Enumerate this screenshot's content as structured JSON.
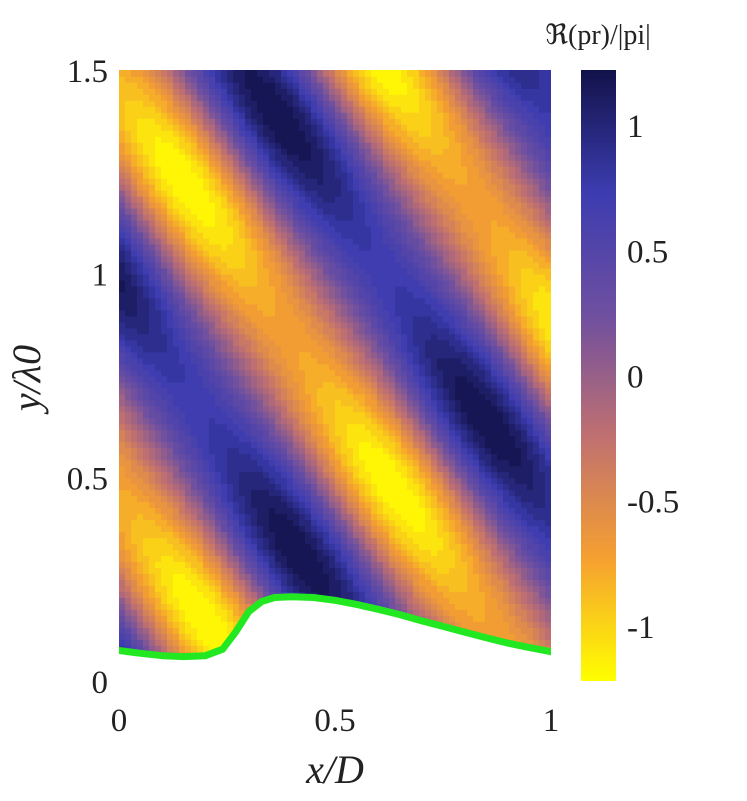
{
  "chart_data": {
    "type": "heatmap",
    "title": "",
    "xlabel": "x/D",
    "ylabel": "y/λ0",
    "xlim": [
      0,
      1
    ],
    "ylim": [
      0,
      1.5
    ],
    "x_ticks": [
      {
        "value": 0,
        "label": "0"
      },
      {
        "value": 0.5,
        "label": "0.5"
      },
      {
        "value": 1,
        "label": "1"
      }
    ],
    "y_ticks": [
      {
        "value": 0,
        "label": "0"
      },
      {
        "value": 0.5,
        "label": "0.5"
      },
      {
        "value": 1,
        "label": "1"
      },
      {
        "value": 1.5,
        "label": "1.5"
      }
    ],
    "colorbar": {
      "title": "ℜ(pr)/|pi|",
      "range": [
        -1.22,
        1.22
      ],
      "ticks": [
        {
          "value": 1,
          "label": "1"
        },
        {
          "value": 0.5,
          "label": "0.5"
        },
        {
          "value": 0,
          "label": "0"
        },
        {
          "value": -0.5,
          "label": "-0.5"
        },
        {
          "value": -1,
          "label": "-1"
        }
      ],
      "colors": [
        "#ffff00",
        "#f5a030",
        "#c07070",
        "#6e4fa0",
        "#3c3cb0",
        "#12124a"
      ]
    },
    "field": {
      "description": "contour of standing-wave field, bands oriented diagonally",
      "min_value": -1.22,
      "max_value": 1.22
    },
    "boundary_curve": {
      "color": "#22e822",
      "points": [
        [
          0.0,
          0.075
        ],
        [
          0.05,
          0.068
        ],
        [
          0.1,
          0.062
        ],
        [
          0.15,
          0.06
        ],
        [
          0.2,
          0.062
        ],
        [
          0.24,
          0.078
        ],
        [
          0.27,
          0.12
        ],
        [
          0.3,
          0.17
        ],
        [
          0.33,
          0.195
        ],
        [
          0.36,
          0.205
        ],
        [
          0.4,
          0.207
        ],
        [
          0.45,
          0.205
        ],
        [
          0.5,
          0.198
        ],
        [
          0.55,
          0.188
        ],
        [
          0.6,
          0.176
        ],
        [
          0.65,
          0.163
        ],
        [
          0.7,
          0.148
        ],
        [
          0.75,
          0.134
        ],
        [
          0.8,
          0.12
        ],
        [
          0.85,
          0.106
        ],
        [
          0.9,
          0.093
        ],
        [
          0.95,
          0.082
        ],
        [
          1.0,
          0.072
        ]
      ]
    }
  }
}
